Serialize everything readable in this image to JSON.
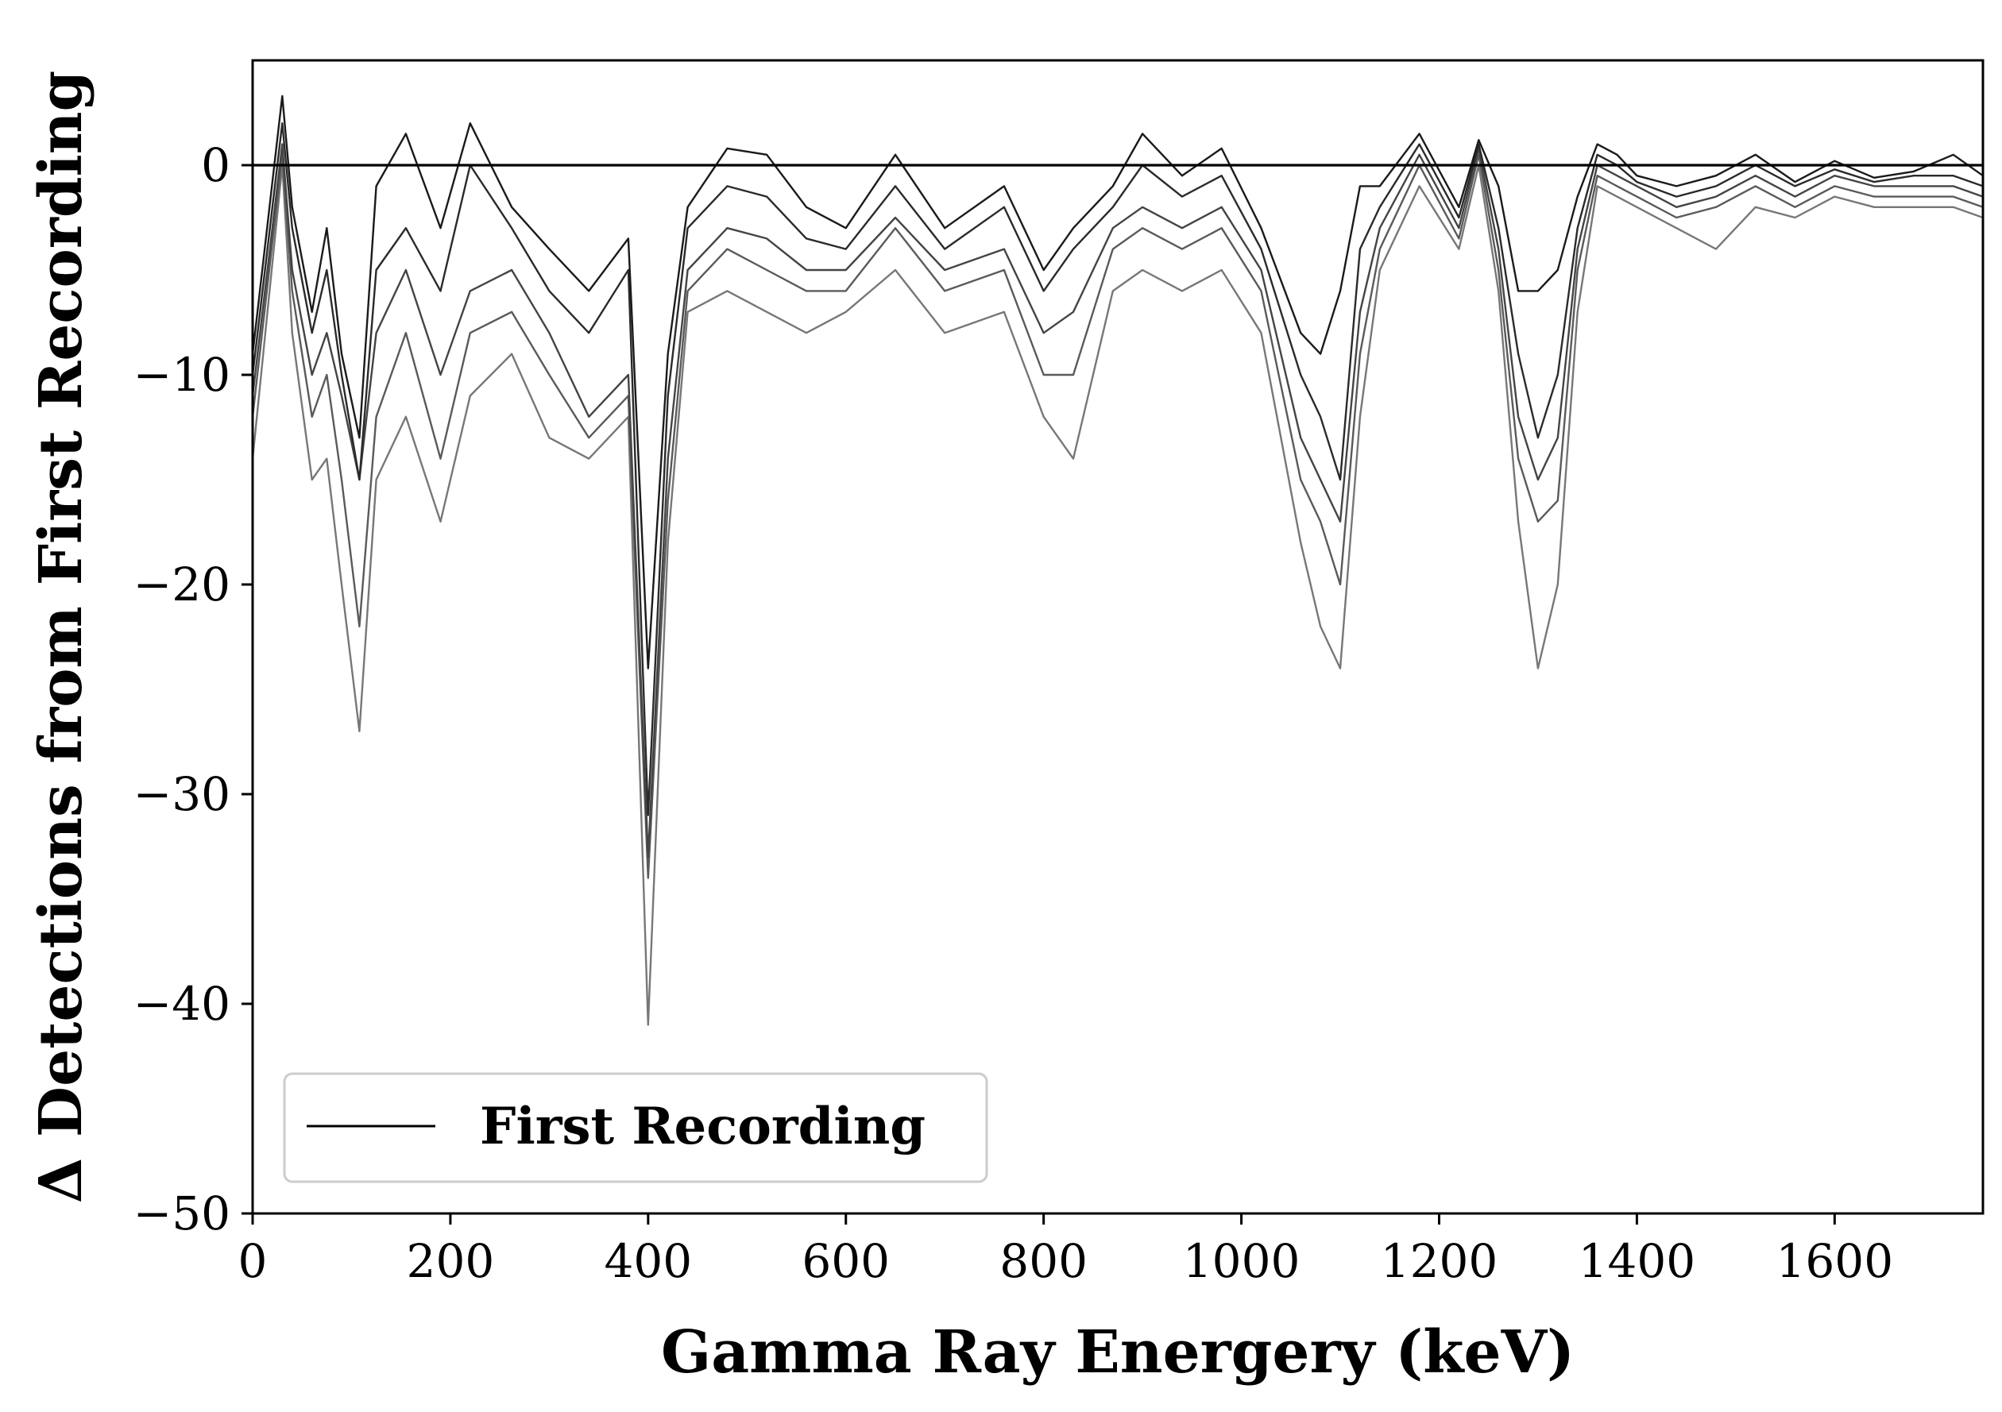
{
  "chart_data": {
    "type": "line",
    "xlabel": "Gamma Ray Energery (keV)",
    "ylabel": "Δ Detections from First Recording",
    "xlim": [
      0,
      1750
    ],
    "ylim": [
      -50,
      5
    ],
    "xticks": [
      0,
      200,
      400,
      600,
      800,
      1000,
      1200,
      1400,
      1600
    ],
    "yticks": [
      0,
      -10,
      -20,
      -30,
      -40,
      -50
    ],
    "xtick_labels": [
      "0",
      "200",
      "400",
      "600",
      "800",
      "1000",
      "1200",
      "1400",
      "1600"
    ],
    "ytick_labels": [
      "0",
      "−10",
      "−20",
      "−30",
      "−40",
      "−50"
    ],
    "grid": false,
    "legend": {
      "location": "lower-left",
      "entries": [
        "First Recording"
      ]
    },
    "x": [
      0,
      30,
      40,
      60,
      75,
      90,
      108,
      125,
      155,
      190,
      220,
      262,
      300,
      340,
      380,
      400,
      420,
      440,
      480,
      520,
      560,
      600,
      650,
      700,
      760,
      800,
      830,
      870,
      900,
      940,
      980,
      1020,
      1060,
      1080,
      1100,
      1120,
      1140,
      1180,
      1220,
      1240,
      1260,
      1280,
      1300,
      1320,
      1340,
      1360,
      1380,
      1400,
      1440,
      1480,
      1520,
      1560,
      1600,
      1640,
      1680,
      1720,
      1750
    ],
    "series": [
      {
        "name": "First Recording",
        "color": "#000000",
        "values": [
          0,
          0,
          0,
          0,
          0,
          0,
          0,
          0,
          0,
          0,
          0,
          0,
          0,
          0,
          0,
          0,
          0,
          0,
          0,
          0,
          0,
          0,
          0,
          0,
          0,
          0,
          0,
          0,
          0,
          0,
          0,
          0,
          0,
          0,
          0,
          0,
          0,
          0,
          0,
          0,
          0,
          0,
          0,
          0,
          0,
          0,
          0,
          0,
          0,
          0,
          0,
          0,
          0,
          0,
          0,
          0,
          0
        ]
      },
      {
        "color": "#1a1a1a",
        "values": [
          -9,
          3.3,
          -2,
          -7,
          -3,
          -9,
          -13,
          -1,
          1.5,
          -3,
          2,
          -2,
          -4,
          -6,
          -3.5,
          -24,
          -9,
          -2,
          0.8,
          0.5,
          -2,
          -3,
          0.5,
          -3,
          -1,
          -5,
          -3,
          -1,
          1.5,
          -0.5,
          0.8,
          -3,
          -8,
          -9,
          -6,
          -1,
          -1,
          1.5,
          -2,
          1.2,
          -1,
          -6,
          -6,
          -5,
          -1.5,
          1,
          0.5,
          -0.5,
          -1,
          -0.5,
          0.5,
          -0.8,
          0.2,
          -0.6,
          -0.3,
          0.5,
          -0.5
        ]
      },
      {
        "color": "#2a2a2a",
        "values": [
          -10,
          2,
          -3,
          -8,
          -5,
          -10,
          -15,
          -5,
          -3,
          -6,
          0,
          -3,
          -6,
          -8,
          -5,
          -31,
          -11,
          -3,
          -1,
          -1.5,
          -3.5,
          -4,
          -1,
          -4,
          -2,
          -6,
          -4,
          -2,
          0,
          -1.5,
          -0.5,
          -4,
          -10,
          -12,
          -15,
          -4,
          -2,
          1,
          -2.5,
          1,
          -3,
          -9,
          -13,
          -10,
          -3,
          0.5,
          0,
          -0.8,
          -1.5,
          -1,
          0,
          -1,
          -0.2,
          -0.8,
          -0.5,
          -0.5,
          -1
        ]
      },
      {
        "color": "#444444",
        "values": [
          -11,
          1,
          -5,
          -10,
          -8,
          -11,
          -15,
          -8,
          -5,
          -10,
          -6,
          -5,
          -8,
          -12,
          -10,
          -33,
          -14,
          -5,
          -3,
          -3.5,
          -5,
          -5,
          -2.5,
          -5,
          -4,
          -8,
          -7,
          -3,
          -2,
          -3,
          -2,
          -5,
          -13,
          -15,
          -17,
          -7,
          -3,
          0.5,
          -3,
          0.8,
          -4,
          -12,
          -15,
          -13,
          -4,
          0,
          -0.5,
          -1,
          -2,
          -1.5,
          -0.5,
          -1.5,
          -0.5,
          -1,
          -1,
          -1,
          -1.5
        ]
      },
      {
        "color": "#5a5a5a",
        "values": [
          -12,
          0.5,
          -6,
          -12,
          -10,
          -15,
          -22,
          -12,
          -8,
          -14,
          -8,
          -7,
          -10,
          -13,
          -11,
          -34,
          -16,
          -6,
          -4,
          -5,
          -6,
          -6,
          -3,
          -6,
          -5,
          -10,
          -10,
          -4,
          -3,
          -4,
          -3,
          -6,
          -15,
          -17,
          -20,
          -9,
          -4,
          0,
          -3.5,
          0.5,
          -5,
          -14,
          -17,
          -16,
          -5,
          -0.5,
          -1,
          -1.5,
          -2.5,
          -2,
          -1,
          -2,
          -1,
          -1.5,
          -1.5,
          -1.5,
          -2
        ]
      },
      {
        "color": "#777777",
        "values": [
          -14,
          0,
          -8,
          -15,
          -14,
          -20,
          -27,
          -15,
          -12,
          -17,
          -11,
          -9,
          -13,
          -14,
          -12,
          -41,
          -18,
          -7,
          -6,
          -7,
          -8,
          -7,
          -5,
          -8,
          -7,
          -12,
          -14,
          -6,
          -5,
          -6,
          -5,
          -8,
          -18,
          -22,
          -24,
          -12,
          -5,
          -1,
          -4,
          0,
          -6,
          -17,
          -24,
          -20,
          -7,
          -1,
          -1.5,
          -2,
          -3,
          -4,
          -2,
          -2.5,
          -1.5,
          -2,
          -2,
          -2,
          -2.5
        ]
      }
    ]
  }
}
